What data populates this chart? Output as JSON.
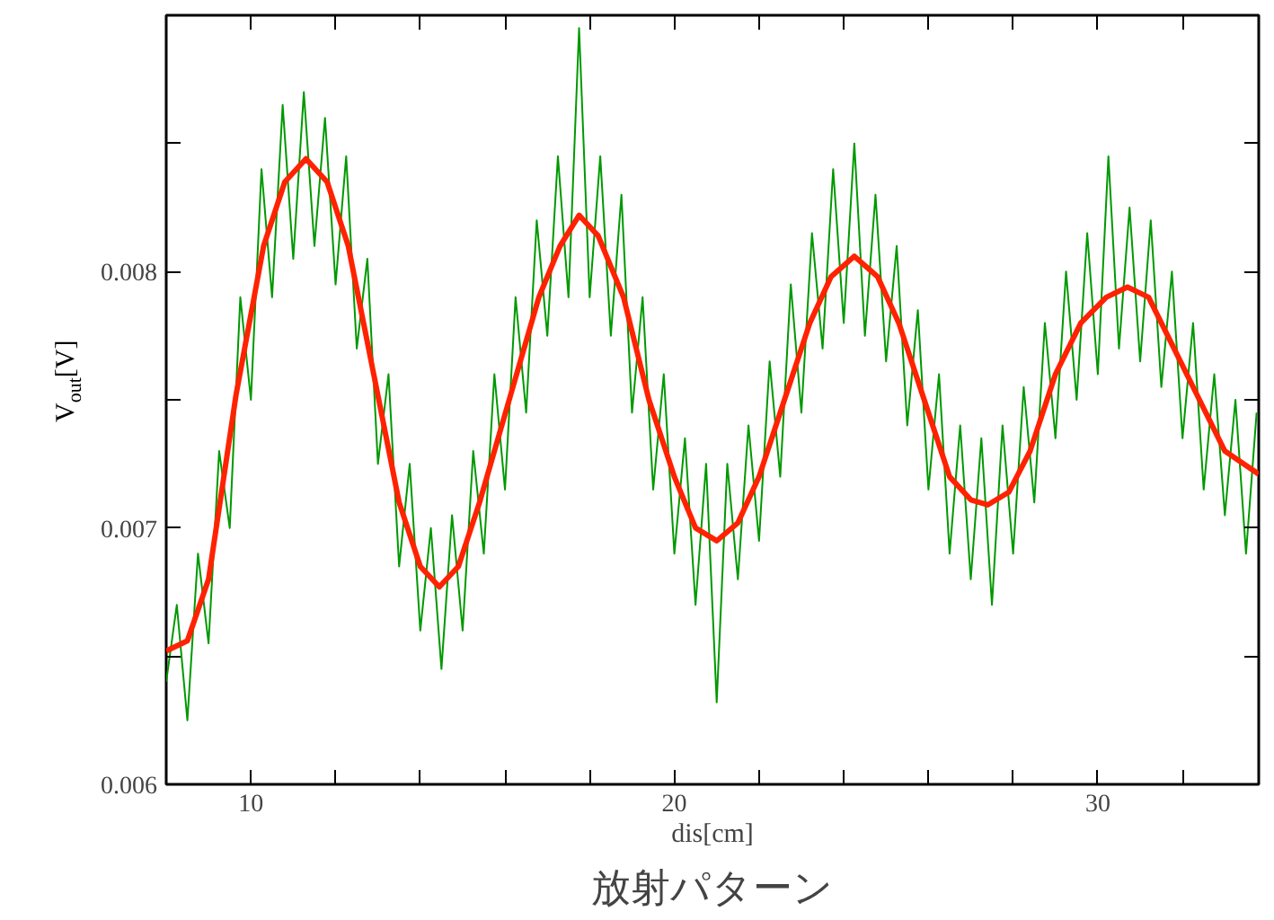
{
  "chart_data": {
    "type": "line",
    "title": "放射パターン",
    "xlabel": "dis[cm]",
    "ylabel": "V$_{out}$[V]",
    "xlim": [
      8,
      33.8
    ],
    "ylim": [
      0.006,
      0.009
    ],
    "xticks": [
      {
        "value": 10,
        "label": "10"
      },
      {
        "value": 12,
        "label": null
      },
      {
        "value": 14,
        "label": null
      },
      {
        "value": 16,
        "label": null
      },
      {
        "value": 18,
        "label": null
      },
      {
        "value": 20,
        "label": "20"
      },
      {
        "value": 22,
        "label": null
      },
      {
        "value": 24,
        "label": null
      },
      {
        "value": 26,
        "label": null
      },
      {
        "value": 28,
        "label": null
      },
      {
        "value": 30,
        "label": "30"
      },
      {
        "value": 32,
        "label": null
      }
    ],
    "yticks": [
      {
        "value": 0.006,
        "label": "0.006"
      },
      {
        "value": 0.0065,
        "label": null
      },
      {
        "value": 0.007,
        "label": "0.007"
      },
      {
        "value": 0.0075,
        "label": null
      },
      {
        "value": 0.008,
        "label": "0.008"
      },
      {
        "value": 0.0085,
        "label": null
      }
    ],
    "grid": false,
    "marker": "none",
    "line_style": "solid",
    "series": [
      {
        "color": "#009900",
        "x": [
          8.0,
          8.25,
          8.5,
          8.75,
          9.0,
          9.25,
          9.5,
          9.75,
          10.0,
          10.25,
          10.5,
          10.75,
          11.0,
          11.25,
          11.5,
          11.75,
          12.0,
          12.25,
          12.5,
          12.75,
          13.0,
          13.25,
          13.5,
          13.75,
          14.0,
          14.25,
          14.5,
          14.75,
          15.0,
          15.25,
          15.5,
          15.75,
          16.0,
          16.25,
          16.5,
          16.75,
          17.0,
          17.25,
          17.5,
          17.75,
          18.0,
          18.25,
          18.5,
          18.75,
          19.0,
          19.25,
          19.5,
          19.75,
          20.0,
          20.25,
          20.5,
          20.75,
          21.0,
          21.25,
          21.5,
          21.75,
          22.0,
          22.25,
          22.5,
          22.75,
          23.0,
          23.25,
          23.5,
          23.75,
          24.0,
          24.25,
          24.5,
          24.75,
          25.0,
          25.25,
          25.5,
          25.75,
          26.0,
          26.25,
          26.5,
          26.75,
          27.0,
          27.25,
          27.5,
          27.75,
          28.0,
          28.25,
          28.5,
          28.75,
          29.0,
          29.25,
          29.5,
          29.75,
          30.0,
          30.25,
          30.5,
          30.75,
          31.0,
          31.25,
          31.5,
          31.75,
          32.0,
          32.25,
          32.5,
          32.75,
          33.0,
          33.25,
          33.5,
          33.75
        ],
        "values": [
          0.0064,
          0.0067,
          0.00625,
          0.0069,
          0.00655,
          0.0073,
          0.007,
          0.0079,
          0.0075,
          0.0084,
          0.0079,
          0.00865,
          0.00805,
          0.0087,
          0.0081,
          0.0086,
          0.00795,
          0.00845,
          0.0077,
          0.00805,
          0.00725,
          0.0076,
          0.00685,
          0.00725,
          0.0066,
          0.007,
          0.00645,
          0.00705,
          0.0066,
          0.0073,
          0.0069,
          0.0076,
          0.00715,
          0.0079,
          0.00745,
          0.0082,
          0.00775,
          0.00845,
          0.0079,
          0.00895,
          0.0079,
          0.00845,
          0.00775,
          0.0083,
          0.00745,
          0.0079,
          0.00715,
          0.0076,
          0.0069,
          0.00735,
          0.0067,
          0.00725,
          0.00632,
          0.00725,
          0.0068,
          0.0074,
          0.00695,
          0.00765,
          0.0072,
          0.00795,
          0.00745,
          0.00815,
          0.0077,
          0.0084,
          0.0078,
          0.0085,
          0.00775,
          0.0083,
          0.00765,
          0.0081,
          0.0074,
          0.00785,
          0.00715,
          0.0076,
          0.0069,
          0.0074,
          0.0068,
          0.00735,
          0.0067,
          0.0074,
          0.0069,
          0.00755,
          0.0071,
          0.0078,
          0.00735,
          0.008,
          0.0075,
          0.00815,
          0.0076,
          0.00845,
          0.0077,
          0.00825,
          0.00765,
          0.0082,
          0.00755,
          0.008,
          0.00735,
          0.0078,
          0.00715,
          0.0076,
          0.00705,
          0.0075,
          0.0069,
          0.00745
        ]
      },
      {
        "color": "#ff2200",
        "x": [
          8,
          8.5,
          9.0,
          9.65,
          10.3,
          10.8,
          11.3,
          11.8,
          12.3,
          12.9,
          13.5,
          14.0,
          14.45,
          14.9,
          15.4,
          16.1,
          16.8,
          17.3,
          17.75,
          18.2,
          18.8,
          19.4,
          20.0,
          20.5,
          21.0,
          21.5,
          22.0,
          22.6,
          23.2,
          23.7,
          24.25,
          24.8,
          25.3,
          25.9,
          26.5,
          27.0,
          27.4,
          27.9,
          28.4,
          29.0,
          29.6,
          30.2,
          30.7,
          31.2,
          31.8,
          32.4,
          33.0,
          33.8
        ],
        "values": [
          0.00652,
          0.00656,
          0.0068,
          0.00752,
          0.0081,
          0.00835,
          0.00844,
          0.00835,
          0.0081,
          0.0076,
          0.0071,
          0.00685,
          0.00677,
          0.00685,
          0.0071,
          0.0075,
          0.0079,
          0.0081,
          0.00822,
          0.00814,
          0.0079,
          0.0075,
          0.0072,
          0.007,
          0.00695,
          0.00702,
          0.0072,
          0.0075,
          0.0078,
          0.00798,
          0.00806,
          0.00798,
          0.0078,
          0.0075,
          0.0072,
          0.00711,
          0.00709,
          0.00714,
          0.0073,
          0.0076,
          0.0078,
          0.0079,
          0.00794,
          0.0079,
          0.0077,
          0.0075,
          0.0073,
          0.00721
        ]
      }
    ]
  }
}
